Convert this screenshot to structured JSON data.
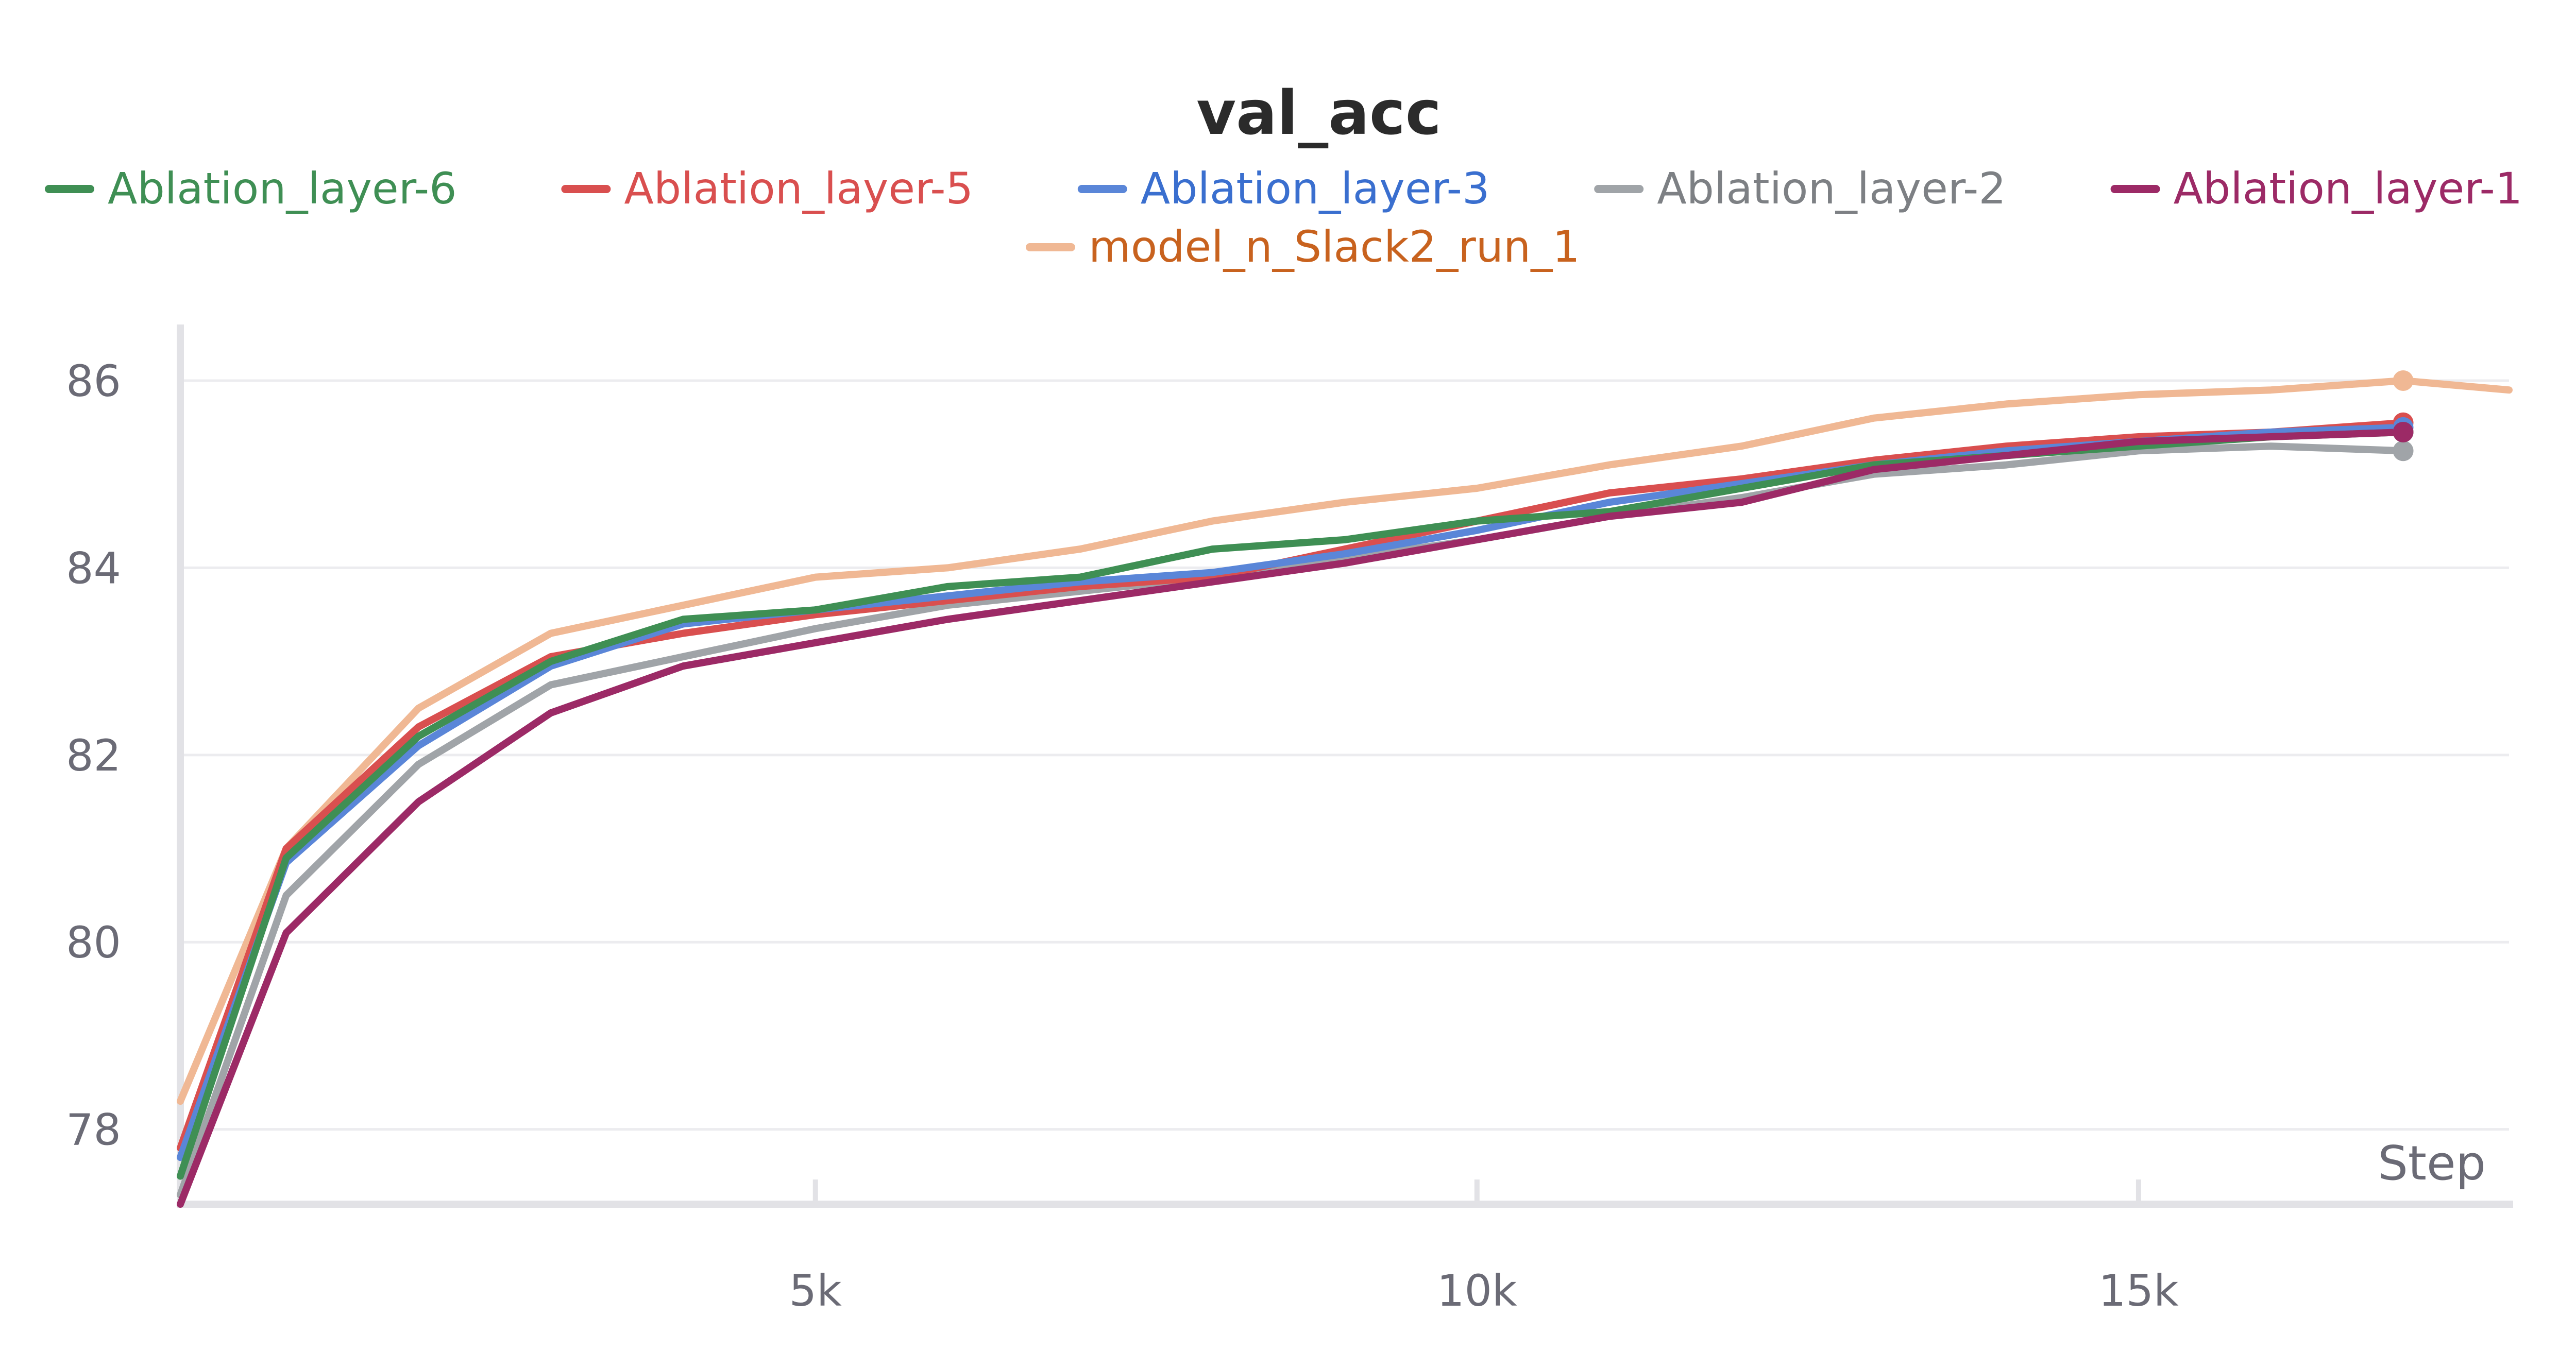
{
  "chart_data": {
    "type": "line",
    "title": "val_acc",
    "xlabel": "Step",
    "ylabel": "",
    "xlim": [
      200,
      17800
    ],
    "ylim": [
      77.2,
      86.6
    ],
    "grid": true,
    "legend": "top-center",
    "xticks": [
      {
        "value": 5000,
        "label": "5k"
      },
      {
        "value": 10000,
        "label": "10k"
      },
      {
        "value": 15000,
        "label": "15k"
      }
    ],
    "yticks": [
      {
        "value": 78,
        "label": "78"
      },
      {
        "value": 80,
        "label": "80"
      },
      {
        "value": 82,
        "label": "82"
      },
      {
        "value": 84,
        "label": "84"
      },
      {
        "value": 86,
        "label": "86"
      }
    ],
    "series": [
      {
        "name": "Ablation_layer-6",
        "color": "#3f8f54",
        "text_color": "#3f8f54",
        "x": [
          200,
          1000,
          2000,
          3000,
          4000,
          5000,
          6000,
          7000,
          8000,
          9000,
          10000,
          11000,
          12000,
          13000,
          14000,
          15000,
          16000,
          17000
        ],
        "y": [
          77.5,
          80.9,
          82.2,
          83.0,
          83.45,
          83.55,
          83.8,
          83.9,
          84.2,
          84.3,
          84.5,
          84.6,
          84.85,
          85.1,
          85.2,
          85.3,
          85.4,
          85.45
        ]
      },
      {
        "name": "Ablation_layer-5",
        "color": "#d94f4f",
        "text_color": "#d94f4f",
        "x": [
          200,
          1000,
          2000,
          3000,
          4000,
          5000,
          6000,
          7000,
          8000,
          9000,
          10000,
          11000,
          12000,
          13000,
          14000,
          15000,
          16000,
          17000
        ],
        "y": [
          77.8,
          81.0,
          82.3,
          83.05,
          83.3,
          83.5,
          83.65,
          83.8,
          83.9,
          84.2,
          84.5,
          84.8,
          84.95,
          85.15,
          85.3,
          85.4,
          85.45,
          85.55
        ]
      },
      {
        "name": "Ablation_layer-3",
        "color": "#5a86d8",
        "text_color": "#3a6fcf",
        "x": [
          200,
          1000,
          2000,
          3000,
          4000,
          5000,
          6000,
          7000,
          8000,
          9000,
          10000,
          11000,
          12000,
          13000,
          14000,
          15000,
          16000,
          17000
        ],
        "y": [
          77.7,
          80.85,
          82.1,
          82.95,
          83.4,
          83.55,
          83.7,
          83.85,
          83.95,
          84.15,
          84.4,
          84.7,
          84.9,
          85.1,
          85.25,
          85.35,
          85.45,
          85.5
        ]
      },
      {
        "name": "Ablation_layer-2",
        "color": "#a0a4a8",
        "text_color": "#7d8084",
        "x": [
          200,
          1000,
          2000,
          3000,
          4000,
          5000,
          6000,
          7000,
          8000,
          9000,
          10000,
          11000,
          12000,
          13000,
          14000,
          15000,
          16000,
          17000
        ],
        "y": [
          77.3,
          80.5,
          81.9,
          82.75,
          83.05,
          83.35,
          83.6,
          83.75,
          83.9,
          84.1,
          84.3,
          84.55,
          84.75,
          85.0,
          85.1,
          85.25,
          85.3,
          85.25
        ]
      },
      {
        "name": "Ablation_layer-1",
        "color": "#9c2a66",
        "text_color": "#9c2a66",
        "x": [
          200,
          1000,
          2000,
          3000,
          4000,
          5000,
          6000,
          7000,
          8000,
          9000,
          10000,
          11000,
          12000,
          13000,
          14000,
          15000,
          16000,
          17000
        ],
        "y": [
          77.2,
          80.1,
          81.5,
          82.45,
          82.95,
          83.2,
          83.45,
          83.65,
          83.85,
          84.05,
          84.3,
          84.55,
          84.7,
          85.05,
          85.2,
          85.35,
          85.4,
          85.45
        ]
      },
      {
        "name": "model_n_Slack2_run_1",
        "color": "#f0b894",
        "text_color": "#c8621e",
        "x": [
          200,
          1000,
          2000,
          3000,
          4000,
          5000,
          6000,
          7000,
          8000,
          9000,
          10000,
          11000,
          12000,
          13000,
          14000,
          15000,
          16000,
          17000,
          17800
        ],
        "y": [
          78.3,
          81.0,
          82.5,
          83.3,
          83.6,
          83.9,
          84.0,
          84.2,
          84.5,
          84.7,
          84.85,
          85.1,
          85.3,
          85.6,
          85.75,
          85.85,
          85.9,
          86.0,
          85.9
        ]
      }
    ]
  }
}
